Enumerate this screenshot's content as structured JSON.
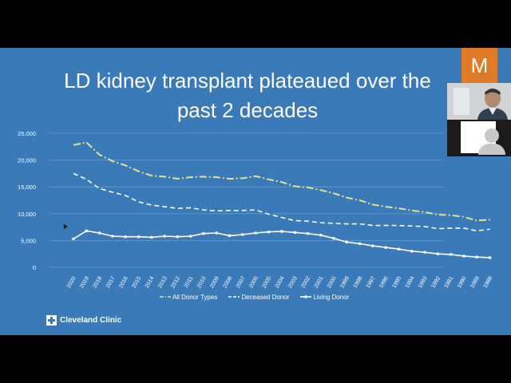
{
  "slide": {
    "title_line1": "LD kidney transplant plateaued over the",
    "title_line2": "past 2 decades",
    "logo_text": "Cleveland Clinic"
  },
  "video": {
    "tile_letter": "M",
    "tile_color": "#e07a27"
  },
  "colors": {
    "background": "#3b7ab8",
    "all_donor": "#e8e08a",
    "deceased": "#ffffff",
    "living": "#ffffff"
  },
  "chart_data": {
    "type": "line",
    "title": "",
    "xlabel": "",
    "ylabel": "",
    "ylim": [
      0,
      25000
    ],
    "yticks": [
      "25,000",
      "20,000",
      "15,000",
      "10,000",
      "5,000",
      "0"
    ],
    "x": [
      "2020",
      "2019",
      "2018",
      "2017",
      "2016",
      "2015",
      "2014",
      "2013",
      "2012",
      "2011",
      "2010",
      "2009",
      "2008",
      "2007",
      "2006",
      "2005",
      "2004",
      "2003",
      "2002",
      "2001",
      "2000",
      "1999",
      "1998",
      "1997",
      "1996",
      "1995",
      "1994",
      "1993",
      "1992",
      "1991",
      "1990",
      "1989",
      "1988"
    ],
    "series": [
      {
        "name": "All Donor Types",
        "style": "dash-dot",
        "values": [
          22800,
          23300,
          21000,
          19800,
          19000,
          17900,
          17100,
          16900,
          16500,
          16800,
          16900,
          16800,
          16500,
          16600,
          17000,
          16400,
          15900,
          15100,
          14900,
          14400,
          13800,
          13000,
          12500,
          11700,
          11300,
          11000,
          10600,
          10300,
          9800,
          9700,
          9400,
          8700,
          8900
        ]
      },
      {
        "name": "Deceased Donor",
        "style": "dashed",
        "values": [
          17500,
          16400,
          14700,
          14000,
          13400,
          12200,
          11600,
          11300,
          11000,
          11100,
          10700,
          10500,
          10600,
          10600,
          10700,
          9900,
          9300,
          8700,
          8600,
          8300,
          8200,
          8100,
          8100,
          7800,
          7800,
          7800,
          7700,
          7600,
          7200,
          7300,
          7300,
          6800,
          7100
        ]
      },
      {
        "name": "Living Donor",
        "style": "solid-dots",
        "values": [
          5300,
          6800,
          6400,
          5800,
          5700,
          5700,
          5600,
          5800,
          5700,
          5800,
          6300,
          6400,
          5900,
          6100,
          6400,
          6600,
          6700,
          6500,
          6300,
          6000,
          5400,
          4700,
          4400,
          4000,
          3700,
          3400,
          3000,
          2800,
          2500,
          2400,
          2100,
          1900,
          1800
        ]
      }
    ],
    "grid": true,
    "legend_position": "bottom"
  }
}
